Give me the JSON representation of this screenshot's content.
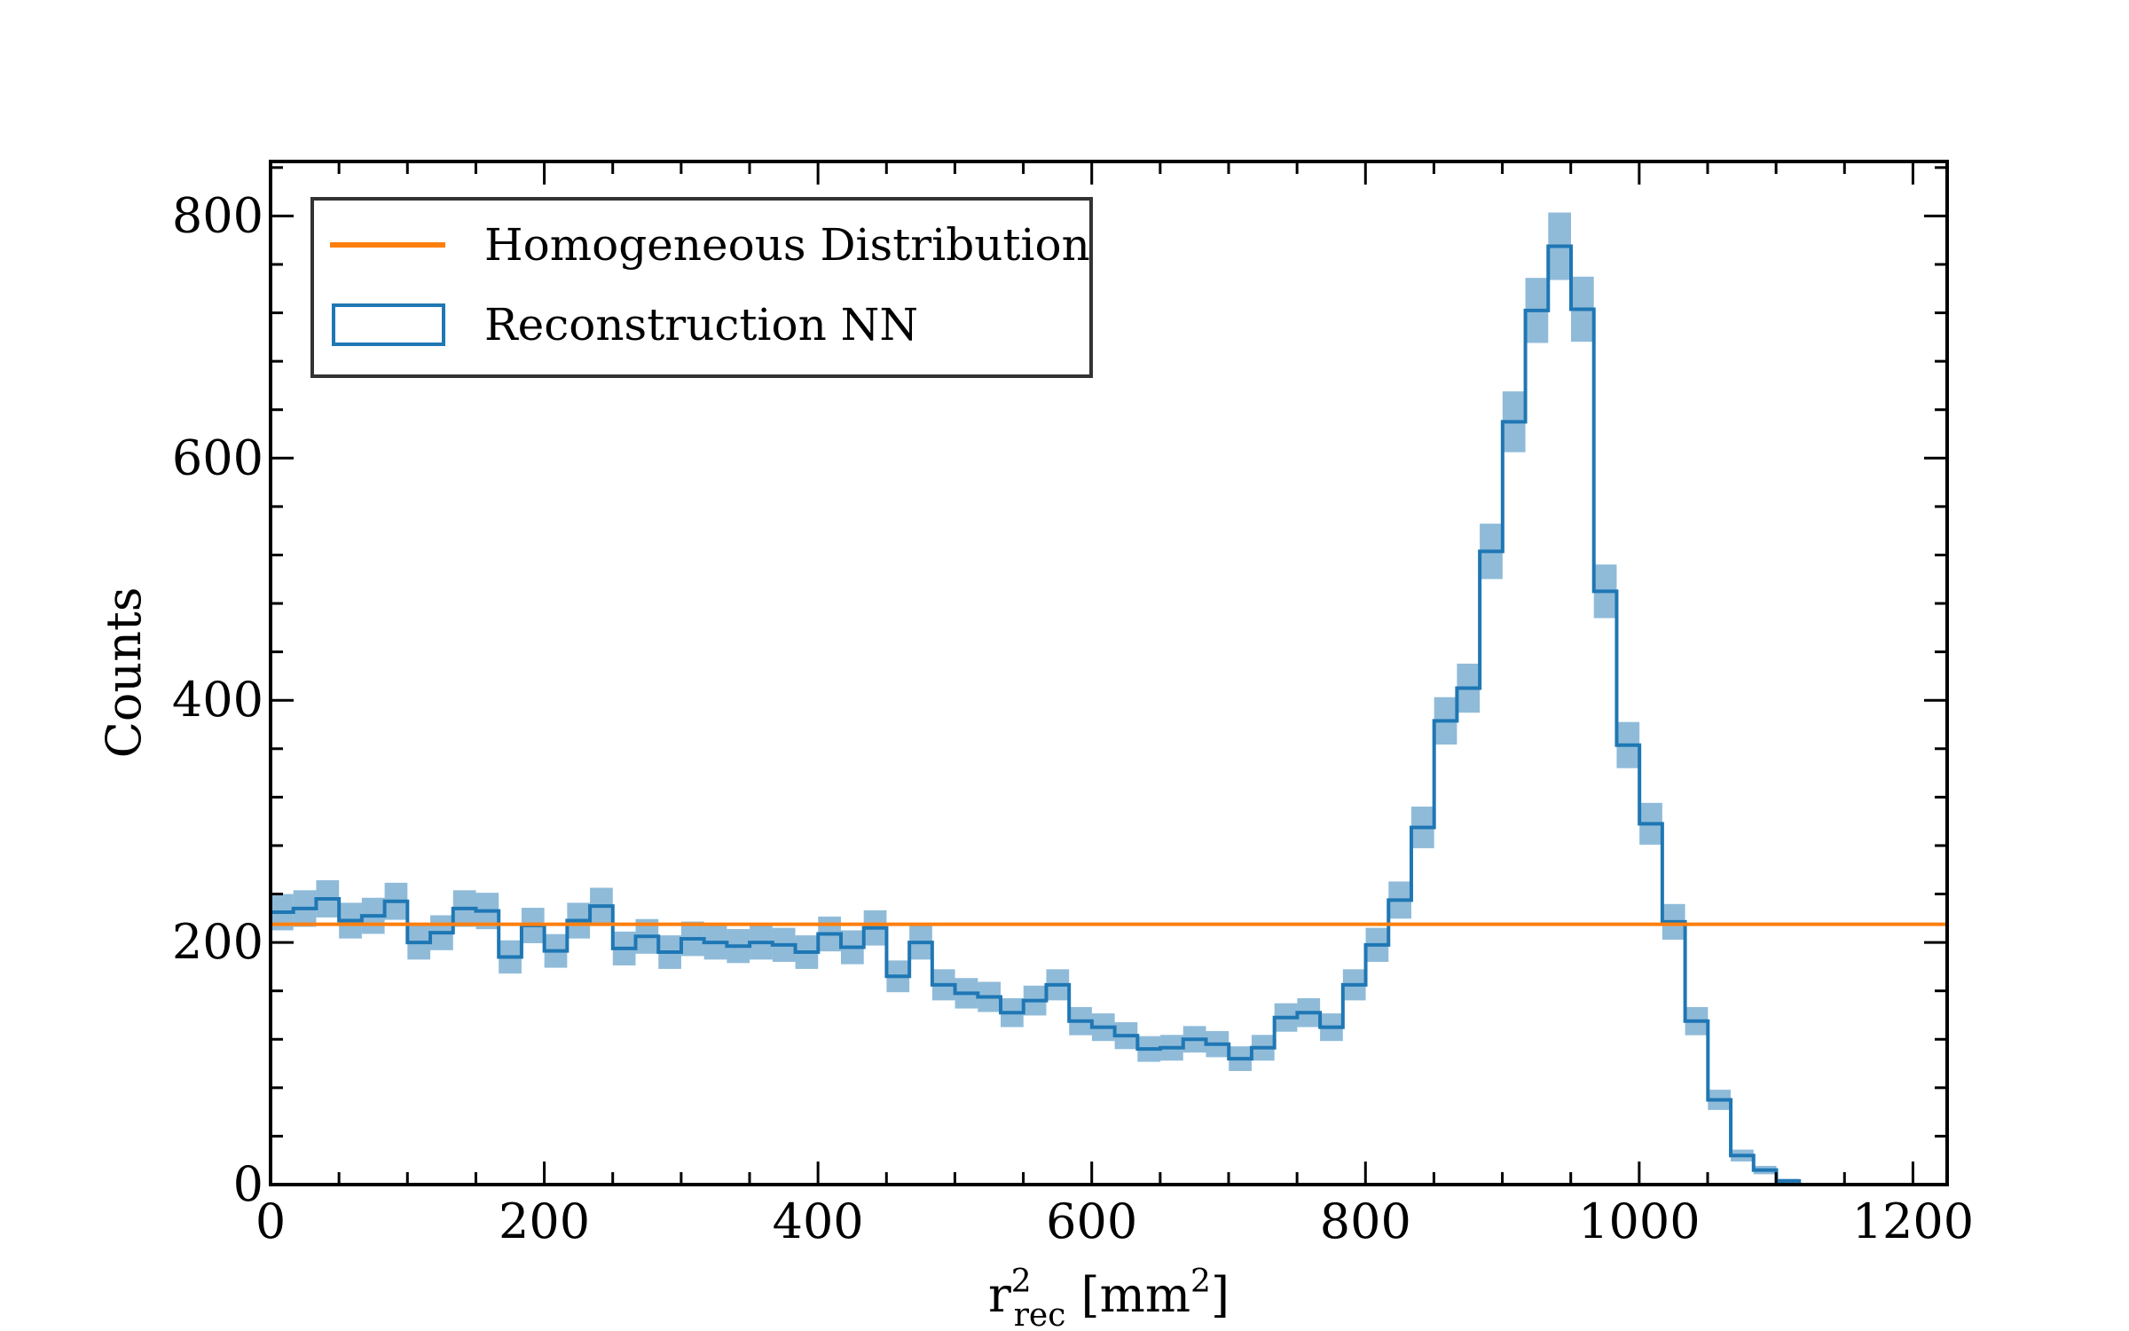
{
  "chart_data": {
    "type": "histogram",
    "xlabel_main": "r",
    "xlabel_sup": "2",
    "xlabel_sub": "rec",
    "xlabel_unit_prefix": "[mm",
    "xlabel_unit_sup": "2",
    "xlabel_unit_suffix": "]",
    "ylabel": "Counts",
    "xlim": [
      0,
      1225
    ],
    "ylim": [
      0,
      845
    ],
    "x_ticks": [
      0,
      200,
      400,
      600,
      800,
      1000,
      1200
    ],
    "x_tick_labels": [
      "0",
      "200",
      "400",
      "600",
      "800",
      "1000",
      "1200"
    ],
    "y_ticks": [
      0,
      200,
      400,
      600,
      800
    ],
    "y_tick_labels": [
      "0",
      "200",
      "400",
      "600",
      "800"
    ],
    "bin_width": 16.67,
    "series": [
      {
        "name": "Reconstruction NN",
        "kind": "step",
        "color": "#1f77b4",
        "band_color": "#1f77b4",
        "band_opacity": 0.5,
        "values": [
          225,
          228,
          236,
          218,
          222,
          234,
          200,
          208,
          228,
          226,
          188,
          214,
          193,
          218,
          230,
          195,
          205,
          192,
          203,
          200,
          197,
          200,
          198,
          192,
          207,
          196,
          212,
          172,
          200,
          165,
          158,
          155,
          142,
          152,
          165,
          135,
          130,
          123,
          112,
          113,
          120,
          116,
          104,
          113,
          138,
          142,
          130,
          165,
          198,
          235,
          295,
          383,
          410,
          523,
          630,
          722,
          775,
          723,
          490,
          363,
          298,
          217,
          135,
          70,
          24,
          12,
          3,
          0,
          0,
          0,
          0,
          0,
          0
        ]
      },
      {
        "name": "Homogeneous Distribution",
        "kind": "hline",
        "color": "#ff7f0e",
        "value": 215
      }
    ],
    "legend_position": "top-left"
  }
}
